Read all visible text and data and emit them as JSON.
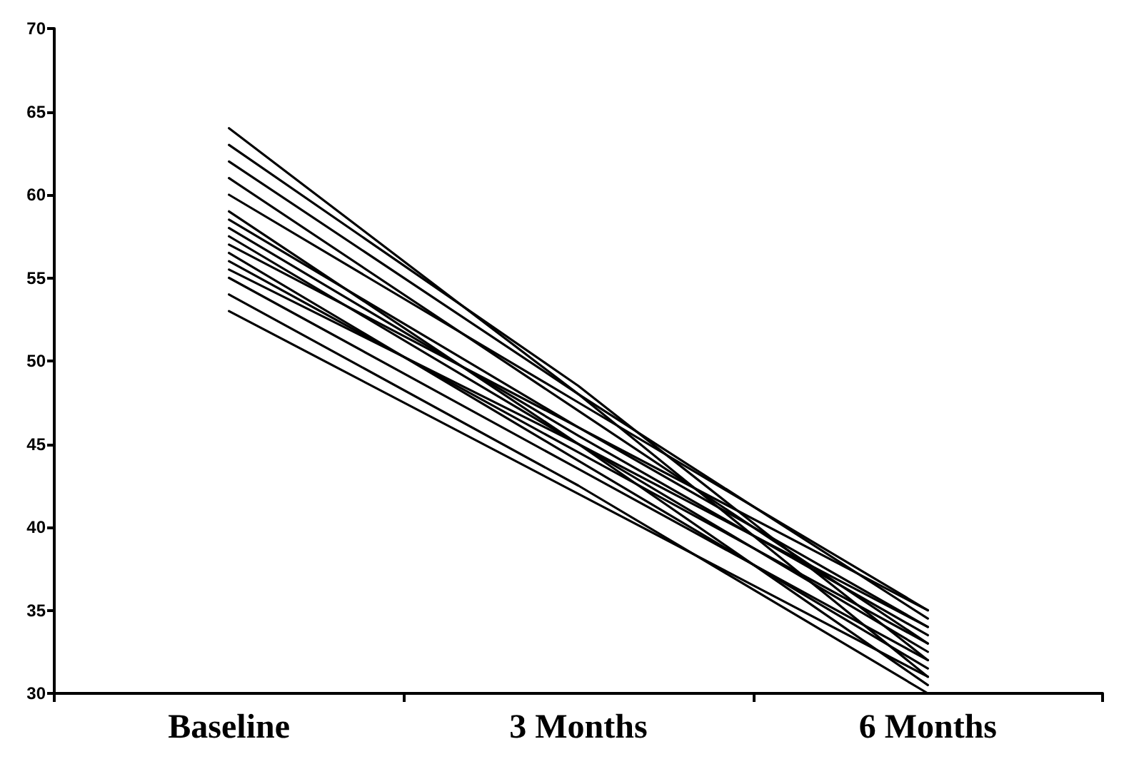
{
  "chart_data": {
    "type": "line",
    "categories": [
      "Baseline",
      "3 Months",
      "6 Months"
    ],
    "series": [
      {
        "color": "#000000",
        "values": [
          64,
          48,
          31
        ]
      },
      {
        "color": "#000000",
        "values": [
          63,
          48.5,
          32
        ]
      },
      {
        "color": "#000000",
        "values": [
          62,
          48,
          34.5
        ]
      },
      {
        "color": "#000000",
        "values": [
          61,
          47,
          33
        ]
      },
      {
        "color": "#000000",
        "values": [
          60,
          47.5,
          35
        ]
      },
      {
        "color": "#000000",
        "values": [
          59,
          45,
          30.5
        ]
      },
      {
        "color": "#000000",
        "values": [
          58.5,
          46,
          34
        ]
      },
      {
        "color": "#000000",
        "values": [
          58,
          45.5,
          33.5
        ]
      },
      {
        "color": "#000000",
        "values": [
          57.5,
          45,
          32.5
        ]
      },
      {
        "color": "#000000",
        "values": [
          57,
          46,
          35
        ]
      },
      {
        "color": "#000000",
        "values": [
          56.5,
          44,
          31.5
        ]
      },
      {
        "color": "#000000",
        "values": [
          56,
          44.5,
          33
        ]
      },
      {
        "color": "#000000",
        "values": [
          55.5,
          45,
          34
        ]
      },
      {
        "color": "#000000",
        "values": [
          55,
          43.5,
          32
        ]
      },
      {
        "color": "#000000",
        "values": [
          54,
          42.5,
          30
        ]
      },
      {
        "color": "#000000",
        "values": [
          53,
          42,
          31
        ]
      }
    ],
    "ylim": [
      30,
      70
    ],
    "yticks": [
      30,
      35,
      40,
      45,
      50,
      55,
      60,
      65,
      70
    ],
    "marker": "none",
    "line_style": "solid"
  }
}
